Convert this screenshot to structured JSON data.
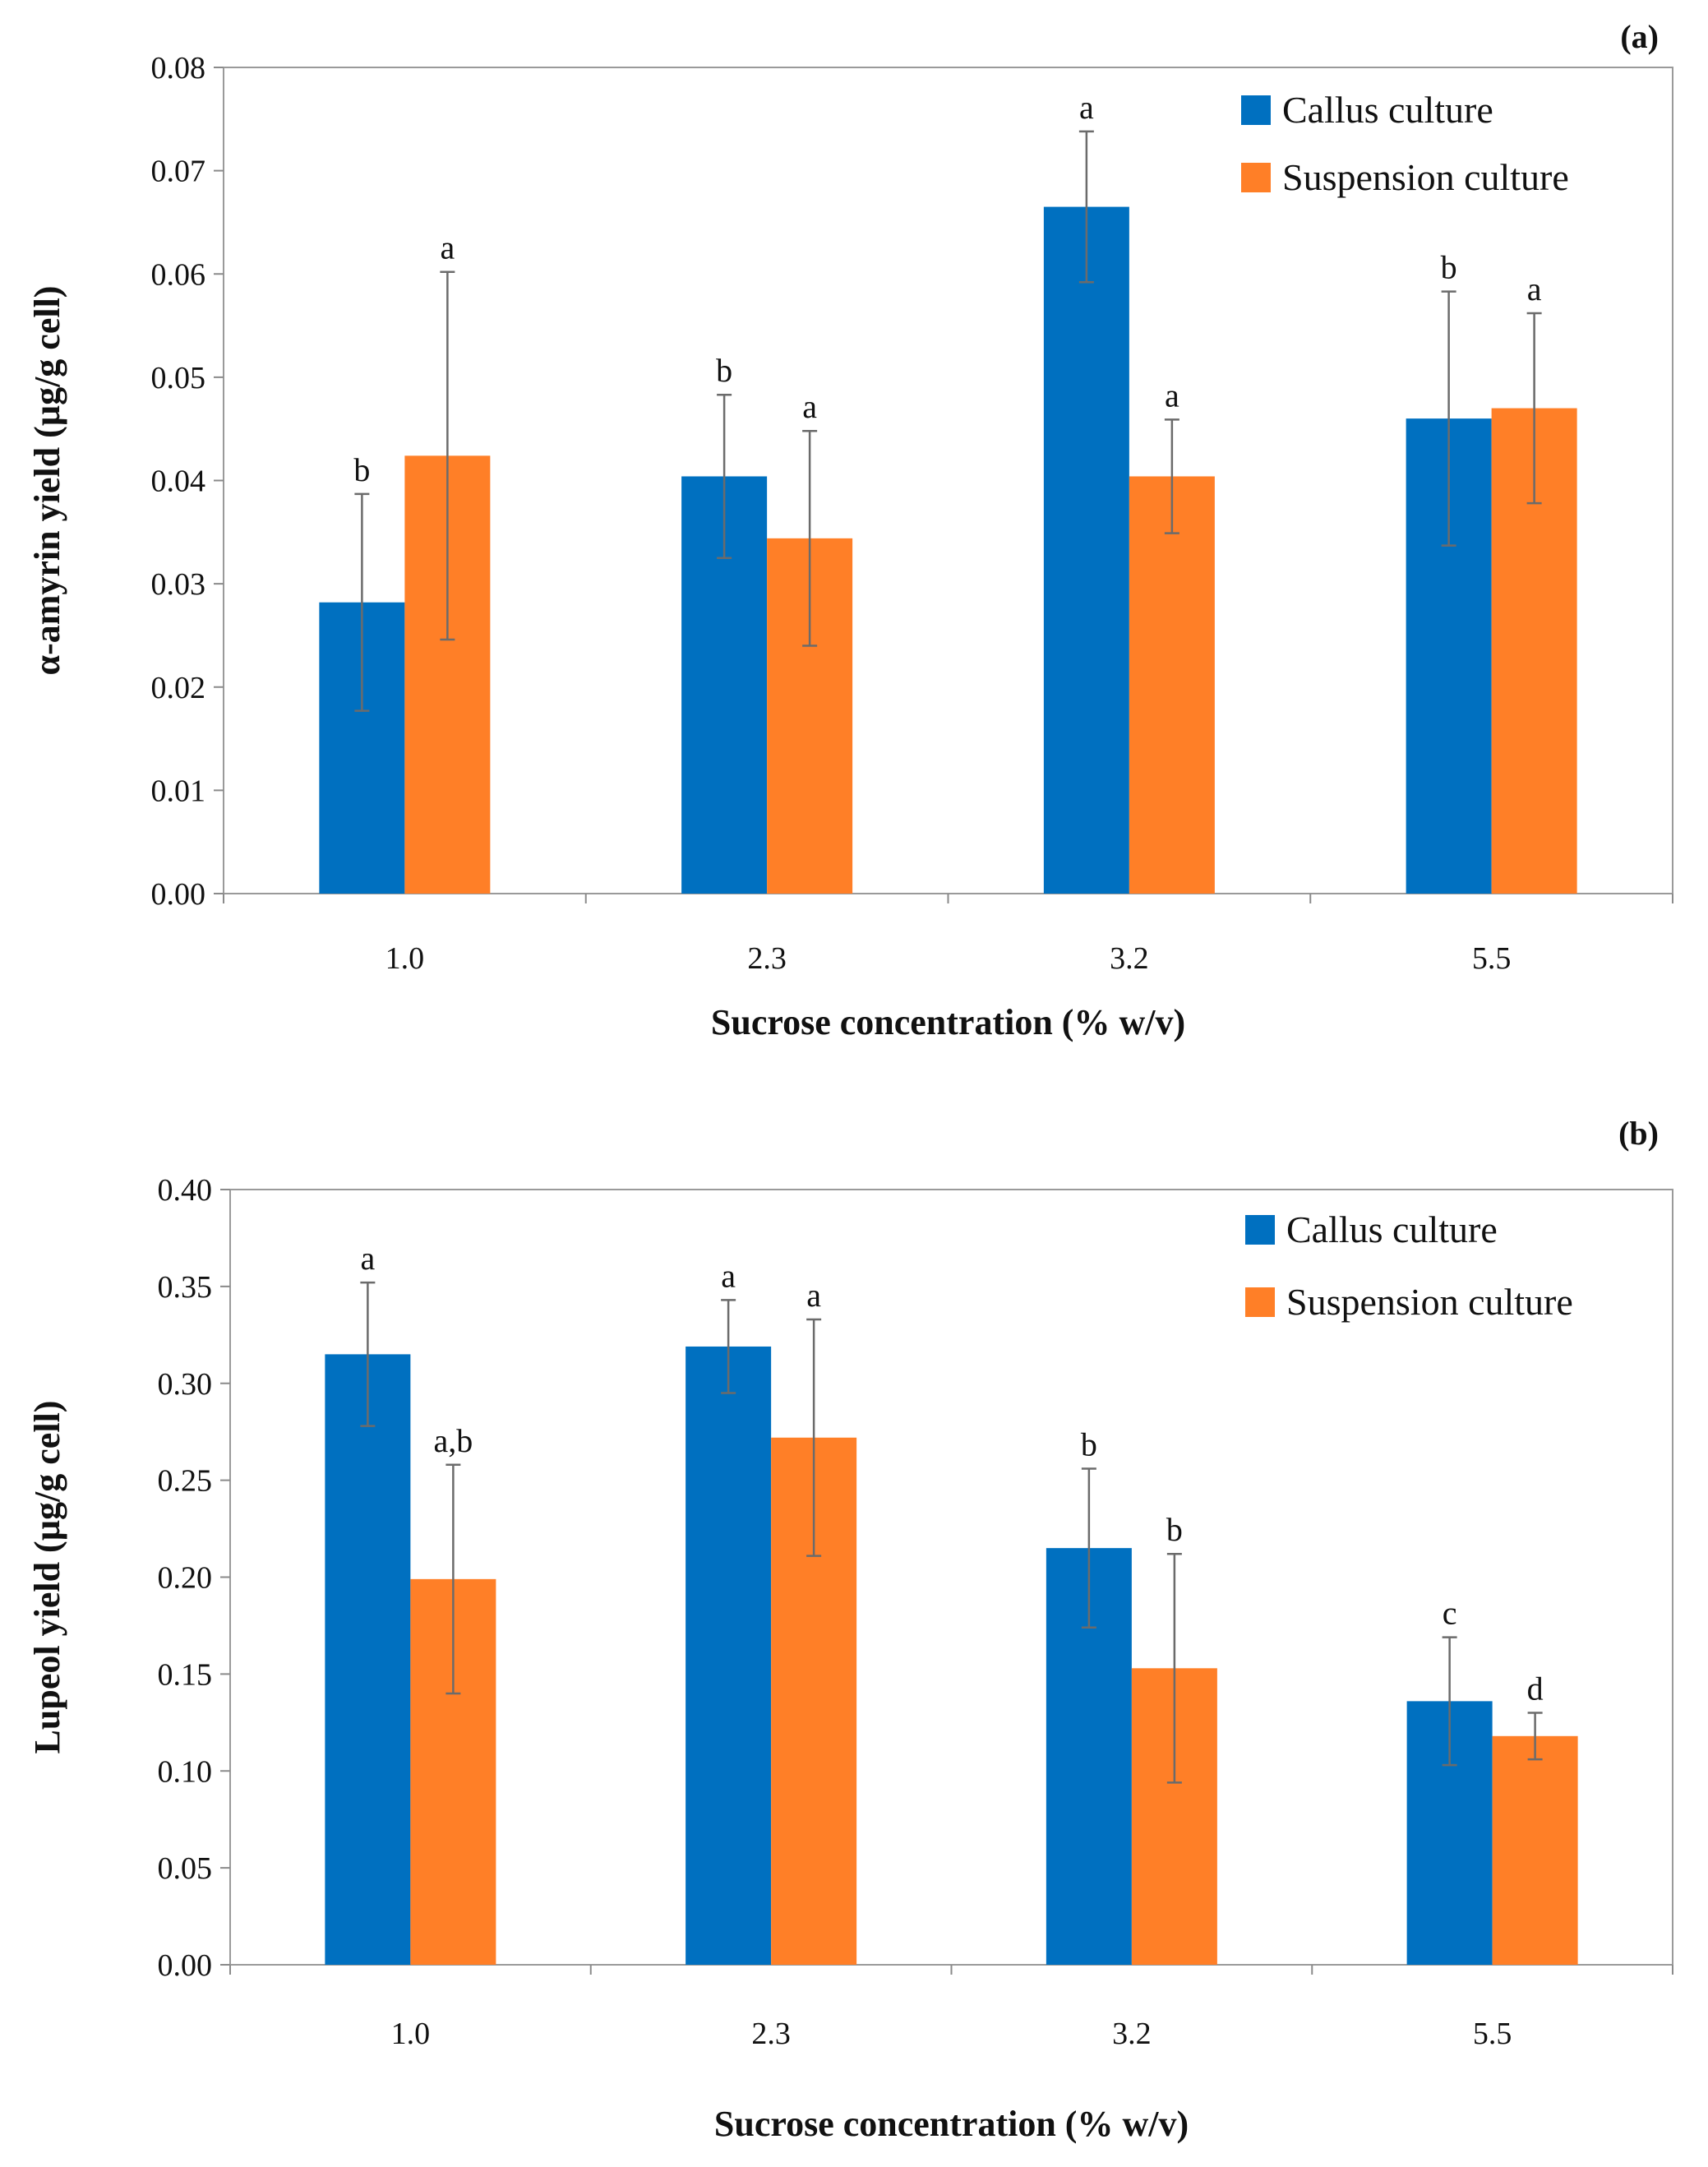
{
  "chart_data": [
    {
      "type": "bar",
      "panel_label": "(a)",
      "categories": [
        "1.0",
        "2.3",
        "3.2",
        "5.5"
      ],
      "xlabel": "Sucrose concentration (% w/v)",
      "ylabel": "α-amyrin yield (µg/g cell)",
      "ylim": [
        0,
        0.08
      ],
      "y_ticks": [
        "0.00",
        "0.01",
        "0.02",
        "0.03",
        "0.04",
        "0.05",
        "0.06",
        "0.07",
        "0.08"
      ],
      "legend_position": "top-right",
      "series": [
        {
          "name": "Callus culture",
          "color": "#0070C0",
          "values": [
            0.0282,
            0.0404,
            0.0665,
            0.046
          ],
          "errors": [
            0.0105,
            0.0079,
            0.0073,
            0.0123
          ],
          "significance": [
            "b",
            "b",
            "a",
            "b"
          ]
        },
        {
          "name": "Suspension culture",
          "color": "#FF7F27",
          "values": [
            0.0424,
            0.0344,
            0.0404,
            0.047
          ],
          "errors": [
            0.0178,
            0.0104,
            0.0055,
            0.0092
          ],
          "significance": [
            "a",
            "a",
            "a",
            "a"
          ]
        }
      ]
    },
    {
      "type": "bar",
      "panel_label": "(b)",
      "categories": [
        "1.0",
        "2.3",
        "3.2",
        "5.5"
      ],
      "xlabel": "Sucrose concentration (% w/v)",
      "ylabel": "Lupeol yield (µg/g cell)",
      "ylim": [
        0,
        0.4
      ],
      "y_ticks": [
        "0.00",
        "0.05",
        "0.10",
        "0.15",
        "0.20",
        "0.25",
        "0.30",
        "0.35",
        "0.40"
      ],
      "legend_position": "top-right",
      "series": [
        {
          "name": "Callus culture",
          "color": "#0070C0",
          "values": [
            0.315,
            0.319,
            0.215,
            0.136
          ],
          "errors": [
            0.037,
            0.024,
            0.041,
            0.033
          ],
          "significance": [
            "a",
            "a",
            "b",
            "c"
          ]
        },
        {
          "name": "Suspension culture",
          "color": "#FF7F27",
          "values": [
            0.199,
            0.272,
            0.153,
            0.118
          ],
          "errors": [
            0.059,
            0.061,
            0.059,
            0.012
          ],
          "significance": [
            "a,b",
            "a",
            "b",
            "d"
          ]
        }
      ]
    }
  ]
}
